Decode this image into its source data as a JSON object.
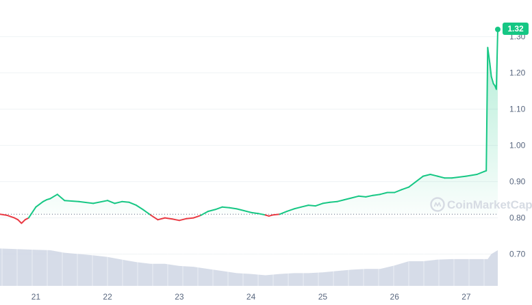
{
  "chart_data": {
    "type": "line",
    "x_ticks": [
      "21",
      "22",
      "23",
      "24",
      "25",
      "26",
      "27"
    ],
    "y_ticks": [
      "0.70",
      "0.80",
      "0.90",
      "1.00",
      "1.10",
      "1.20",
      "1.30"
    ],
    "ylim": [
      0.6,
      1.36
    ],
    "baseline": 0.81,
    "current_price": "1.32",
    "watermark": "CoinMarketCap",
    "colors": {
      "up": "#16c784",
      "down": "#ea3943",
      "volume": "#cfd6e4",
      "grid": "#eff2f5",
      "baseline": "#58667e"
    },
    "series": [
      {
        "x": [
          20.5,
          20.6,
          20.7,
          20.75,
          20.8,
          20.85,
          20.9,
          21.0,
          21.1,
          21.15,
          21.2,
          21.3,
          21.4,
          21.6,
          21.8,
          22.0,
          22.1,
          22.2,
          22.3,
          22.4,
          22.5,
          22.6,
          22.7,
          22.8,
          22.9,
          23.0,
          23.1,
          23.2,
          23.3,
          23.4,
          23.5,
          23.6,
          23.7,
          23.8,
          23.9,
          24.0,
          24.1,
          24.2,
          24.25,
          24.3,
          24.4,
          24.5,
          24.6,
          24.7,
          24.8,
          24.9,
          25.0,
          25.1,
          25.2,
          25.3,
          25.4,
          25.5,
          25.6,
          25.7,
          25.8,
          25.9,
          26.0,
          26.1,
          26.2,
          26.3,
          26.4,
          26.5,
          26.6,
          26.7,
          26.8,
          27.0,
          27.15,
          27.25,
          27.28,
          27.3,
          27.33,
          27.35,
          27.38,
          27.4,
          27.42,
          27.44
        ],
        "values": [
          0.81,
          0.807,
          0.8,
          0.795,
          0.785,
          0.795,
          0.8,
          0.83,
          0.845,
          0.85,
          0.853,
          0.865,
          0.848,
          0.845,
          0.84,
          0.848,
          0.84,
          0.845,
          0.843,
          0.835,
          0.822,
          0.808,
          0.795,
          0.8,
          0.797,
          0.793,
          0.798,
          0.8,
          0.807,
          0.818,
          0.823,
          0.83,
          0.828,
          0.825,
          0.82,
          0.815,
          0.812,
          0.808,
          0.805,
          0.808,
          0.81,
          0.818,
          0.825,
          0.83,
          0.835,
          0.833,
          0.84,
          0.843,
          0.845,
          0.85,
          0.855,
          0.86,
          0.858,
          0.862,
          0.865,
          0.87,
          0.87,
          0.878,
          0.885,
          0.9,
          0.915,
          0.92,
          0.915,
          0.91,
          0.91,
          0.915,
          0.92,
          0.928,
          0.93,
          1.27,
          1.225,
          1.19,
          1.17,
          1.165,
          1.155,
          1.32
        ]
      }
    ],
    "volume": {
      "x": [
        20.5,
        21.0,
        21.2,
        21.4,
        21.6,
        21.8,
        22.0,
        22.2,
        22.4,
        22.6,
        22.8,
        23.0,
        23.2,
        23.4,
        23.6,
        23.8,
        24.0,
        24.2,
        24.4,
        24.6,
        24.8,
        25.0,
        25.2,
        25.4,
        25.6,
        25.8,
        26.0,
        26.2,
        26.4,
        26.6,
        26.8,
        27.0,
        27.2,
        27.3,
        27.35,
        27.44
      ],
      "values": [
        88,
        85,
        84,
        78,
        75,
        72,
        68,
        62,
        56,
        52,
        52,
        47,
        45,
        40,
        35,
        30,
        28,
        25,
        28,
        30,
        30,
        32,
        35,
        38,
        40,
        40,
        48,
        58,
        58,
        62,
        63,
        63,
        63,
        63,
        75,
        84
      ],
      "max": 100
    }
  }
}
